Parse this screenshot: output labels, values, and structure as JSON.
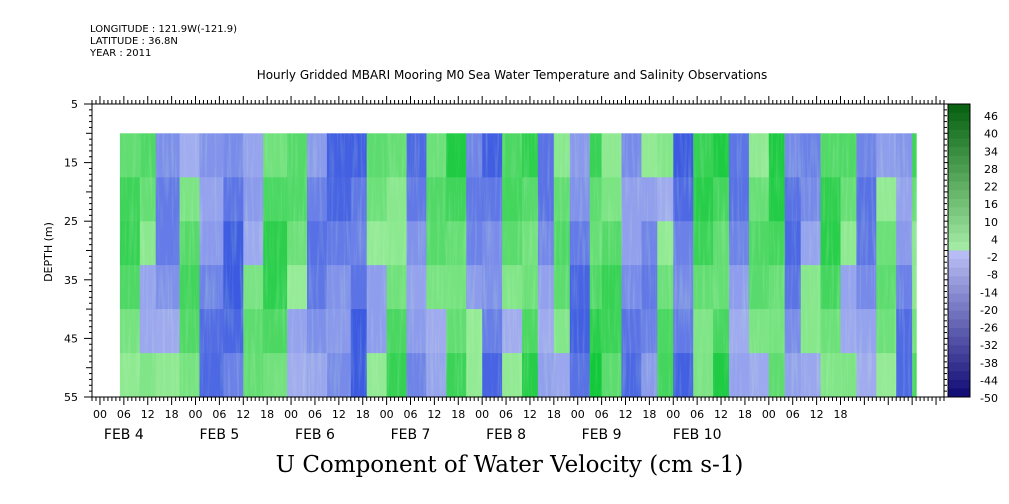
{
  "meta": {
    "longitude": "LONGITUDE : 121.9W(-121.9)",
    "latitude": "LATITUDE : 36.8N",
    "year": "YEAR : 2011"
  },
  "chart_data": {
    "type": "heatmap",
    "title": "Hourly Gridded MBARI Mooring M0 Sea Water Temperature and Salinity Observations",
    "xlabel": "U Component of Water Velocity (cm s-1)",
    "ylabel": "DEPTH (m)",
    "ylim": [
      55,
      5
    ],
    "y_ticks": [
      5,
      15,
      25,
      35,
      45,
      55
    ],
    "hour_ticks": [
      "00",
      "06",
      "12",
      "18",
      "00",
      "06",
      "12",
      "18",
      "00",
      "06",
      "12",
      "18",
      "00",
      "06",
      "12",
      "18",
      "00",
      "06",
      "12",
      "18",
      "00",
      "06",
      "12",
      "18",
      "00",
      "06",
      "12",
      "18",
      "00",
      "06",
      "12",
      "18"
    ],
    "day_labels": [
      "FEB  4",
      "FEB  5",
      "FEB  6",
      "FEB  7",
      "FEB  8",
      "FEB  9",
      "FEB 10"
    ],
    "data_start_hour": 5,
    "data_end_hour": 204,
    "data_top_depth": 10,
    "colorbar": {
      "labels": [
        "46",
        "40",
        "34",
        "28",
        "22",
        "16",
        "10",
        "4",
        "-2",
        "-8",
        "-14",
        "-20",
        "-26",
        "-32",
        "-38",
        "-44",
        "-50"
      ],
      "min": -50,
      "max": 52
    },
    "column_bands": [
      {
        "hour": 5,
        "value": 8
      },
      {
        "hour": 10,
        "value": 4
      },
      {
        "hour": 14,
        "value": -6
      },
      {
        "hour": 20,
        "value": 6
      },
      {
        "hour": 25,
        "value": -10
      },
      {
        "hour": 31,
        "value": -14
      },
      {
        "hour": 36,
        "value": 2
      },
      {
        "hour": 41,
        "value": 10
      },
      {
        "hour": 47,
        "value": 4
      },
      {
        "hour": 52,
        "value": -8
      },
      {
        "hour": 57,
        "value": -12
      },
      {
        "hour": 63,
        "value": -18
      },
      {
        "hour": 67,
        "value": 2
      },
      {
        "hour": 72,
        "value": 8
      },
      {
        "hour": 77,
        "value": -10
      },
      {
        "hour": 82,
        "value": 4
      },
      {
        "hour": 87,
        "value": 12
      },
      {
        "hour": 92,
        "value": -6
      },
      {
        "hour": 96,
        "value": -14
      },
      {
        "hour": 101,
        "value": 6
      },
      {
        "hour": 106,
        "value": 12
      },
      {
        "hour": 110,
        "value": -8
      },
      {
        "hour": 114,
        "value": 4
      },
      {
        "hour": 118,
        "value": -12
      },
      {
        "hour": 123,
        "value": 14
      },
      {
        "hour": 126,
        "value": 8
      },
      {
        "hour": 131,
        "value": -10
      },
      {
        "hour": 136,
        "value": -6
      },
      {
        "hour": 140,
        "value": 6
      },
      {
        "hour": 144,
        "value": -16
      },
      {
        "hour": 149,
        "value": 10
      },
      {
        "hour": 154,
        "value": 14
      },
      {
        "hour": 158,
        "value": -8
      },
      {
        "hour": 163,
        "value": 4
      },
      {
        "hour": 168,
        "value": 12
      },
      {
        "hour": 172,
        "value": -10
      },
      {
        "hour": 176,
        "value": -4
      },
      {
        "hour": 181,
        "value": 10
      },
      {
        "hour": 186,
        "value": 4
      },
      {
        "hour": 190,
        "value": -8
      },
      {
        "hour": 195,
        "value": 2
      },
      {
        "hour": 200,
        "value": -10
      },
      {
        "hour": 204,
        "value": 8
      }
    ]
  }
}
